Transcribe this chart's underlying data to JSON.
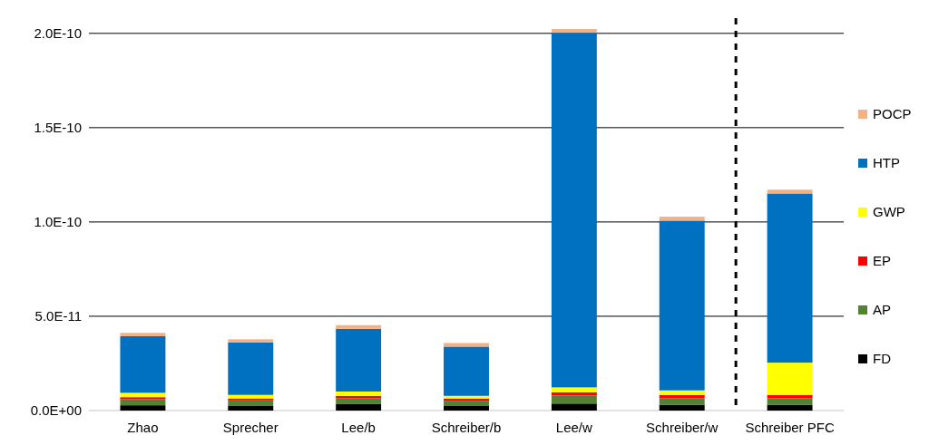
{
  "chart_data": {
    "type": "bar",
    "stacked": true,
    "categories": [
      "Zhao",
      "Sprecher",
      "Lee/b",
      "Schreiber/b",
      "Lee/w",
      "Schreiber/w",
      "Schreiber PFC"
    ],
    "series": [
      {
        "name": "FD",
        "color": "#000000",
        "values": [
          2.8e-12,
          2.4e-12,
          3.4e-12,
          2.4e-12,
          3.7e-12,
          3.1e-12,
          3.1e-12
        ]
      },
      {
        "name": "AP",
        "color": "#548235",
        "values": [
          3.2e-12,
          3e-12,
          3.2e-12,
          2.8e-12,
          4.3e-12,
          3.5e-12,
          3.5e-12
        ]
      },
      {
        "name": "EP",
        "color": "#ff0000",
        "values": [
          1.1e-12,
          1e-12,
          1.2e-12,
          1.1e-12,
          1.7e-12,
          1.6e-12,
          1.7e-12
        ]
      },
      {
        "name": "GWP",
        "color": "#ffff00",
        "values": [
          2.3e-12,
          1.9e-12,
          2.3e-12,
          1.5e-12,
          2.6e-12,
          2.5e-12,
          1.71e-11
        ]
      },
      {
        "name": "HTP",
        "color": "#0070c0",
        "values": [
          3e-11,
          2.78e-11,
          3.32e-11,
          2.61e-11,
          1.88e-10,
          9e-11,
          8.97e-11
        ]
      },
      {
        "name": "POCP",
        "color": "#f4b183",
        "values": [
          1.8e-12,
          1.7e-12,
          2e-12,
          1.9e-12,
          2e-12,
          2.1e-12,
          2e-12
        ]
      }
    ],
    "ylim": [
      0,
      2.1e-10
    ],
    "yticks": [
      {
        "value": 0,
        "label": "0.0E+00"
      },
      {
        "value": 5e-11,
        "label": "5.0E-11"
      },
      {
        "value": 1e-10,
        "label": "1.0E-10"
      },
      {
        "value": 1.5e-10,
        "label": "1.5E-10"
      },
      {
        "value": 2e-10,
        "label": "2.0E-10"
      }
    ],
    "grid": "y",
    "legend": "right"
  }
}
